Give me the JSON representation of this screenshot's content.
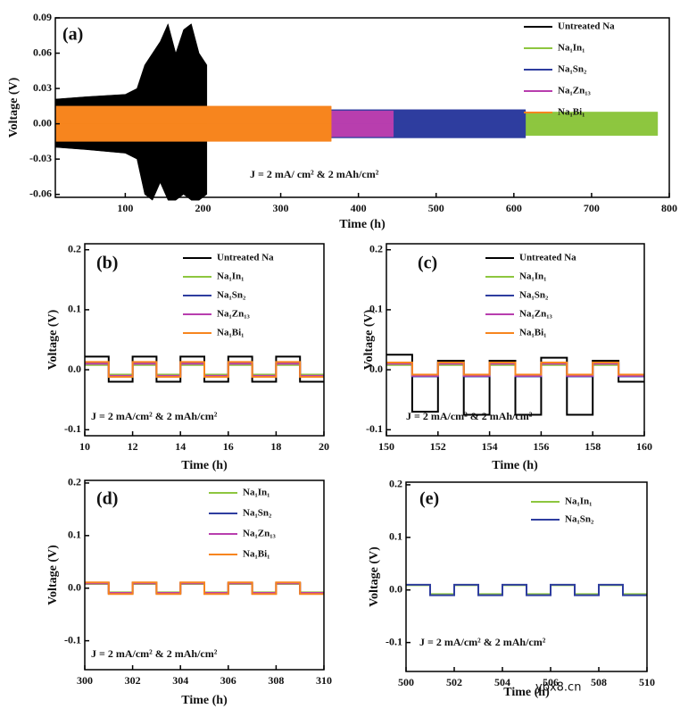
{
  "chart_data": [
    {
      "type": "band",
      "panel_label": "(a)",
      "annotation": "J = 2 mA/ cm² & 2 mAh/cm²",
      "xlabel": "Time (h)",
      "ylabel": "Voltage (V)",
      "xlim": [
        10,
        800
      ],
      "ylim": [
        -0.0625,
        0.09
      ],
      "xticks": [
        100,
        200,
        300,
        400,
        500,
        600,
        700,
        800
      ],
      "yticks": [
        -0.06,
        -0.03,
        {
          "value": 0,
          "label": "0.00"
        },
        0.03,
        0.06,
        0.09
      ],
      "series": [
        {
          "name": "Untreated Na",
          "color": "#000000",
          "x": [
            10,
            50,
            100,
            115,
            125,
            135,
            145,
            155,
            165,
            175,
            185,
            195,
            205
          ],
          "upper": [
            0.021,
            0.023,
            0.025,
            0.03,
            0.05,
            0.06,
            0.07,
            0.085,
            0.06,
            0.08,
            0.085,
            0.06,
            0.05
          ],
          "lower": [
            -0.02,
            -0.022,
            -0.025,
            -0.03,
            -0.06,
            -0.065,
            -0.05,
            -0.065,
            -0.065,
            -0.06,
            -0.065,
            -0.065,
            -0.06
          ]
        },
        {
          "name": "Na₁In₁",
          "color": "#8dc63f",
          "x": [
            10,
            785
          ],
          "upper": [
            0.01,
            0.01
          ],
          "lower": [
            -0.01,
            -0.01
          ]
        },
        {
          "name": "Na₁Sn₂",
          "color": "#2e3d9f",
          "x": [
            10,
            615
          ],
          "upper": [
            0.012,
            0.012
          ],
          "lower": [
            -0.012,
            -0.012
          ]
        },
        {
          "name": "Na₁Zn₁₃",
          "color": "#b83eae",
          "x": [
            10,
            445
          ],
          "upper": [
            0.011,
            0.011
          ],
          "lower": [
            -0.011,
            -0.011
          ]
        },
        {
          "name": "Na₁Bi₁",
          "color": "#f7851e",
          "x": [
            10,
            365
          ],
          "upper": [
            0.015,
            0.015
          ],
          "lower": [
            -0.015,
            -0.015
          ]
        }
      ]
    },
    {
      "type": "line",
      "panel_label": "(b)",
      "annotation": "J = 2 mA/cm² & 2 mAh/cm²",
      "xlabel": "Time (h)",
      "ylabel": "Voltage (V)",
      "xlim": [
        10,
        20
      ],
      "ylim": [
        -0.11,
        0.21
      ],
      "xticks": [
        10,
        12,
        14,
        16,
        18,
        20
      ],
      "yticks": [
        -0.1,
        {
          "value": 0,
          "label": "0.0"
        },
        0.1,
        0.2
      ],
      "x": [
        10,
        11,
        11,
        12,
        12,
        13,
        13,
        14,
        14,
        15,
        15,
        16,
        16,
        17,
        17,
        18,
        18,
        19,
        19,
        20
      ],
      "series": [
        {
          "name": "Untreated Na",
          "color": "#000000",
          "values": [
            0.022,
            0.022,
            -0.02,
            -0.02,
            0.022,
            0.022,
            -0.02,
            -0.02,
            0.022,
            0.022,
            -0.02,
            -0.02,
            0.022,
            0.022,
            -0.02,
            -0.02,
            0.022,
            0.022,
            -0.02,
            -0.02
          ]
        },
        {
          "name": "Na₁In₁",
          "color": "#8dc63f",
          "values": [
            0.008,
            0.008,
            -0.008,
            -0.008,
            0.008,
            0.008,
            -0.008,
            -0.008,
            0.008,
            0.008,
            -0.008,
            -0.008,
            0.008,
            0.008,
            -0.008,
            -0.008,
            0.008,
            0.008,
            -0.008,
            -0.008
          ]
        },
        {
          "name": "Na₁Sn₂",
          "color": "#2e3d9f",
          "values": [
            0.011,
            0.011,
            -0.011,
            -0.011,
            0.011,
            0.011,
            -0.011,
            -0.011,
            0.011,
            0.011,
            -0.011,
            -0.011,
            0.011,
            0.011,
            -0.011,
            -0.011,
            0.011,
            0.011,
            -0.011,
            -0.011
          ]
        },
        {
          "name": "Na₁Zn₁₃",
          "color": "#b83eae",
          "values": [
            0.01,
            0.01,
            -0.01,
            -0.01,
            0.01,
            0.01,
            -0.01,
            -0.01,
            0.01,
            0.01,
            -0.01,
            -0.01,
            0.01,
            0.01,
            -0.01,
            -0.01,
            0.01,
            0.01,
            -0.01,
            -0.01
          ]
        },
        {
          "name": "Na₁Bi₁",
          "color": "#f7851e",
          "values": [
            0.013,
            0.013,
            -0.012,
            -0.012,
            0.013,
            0.013,
            -0.012,
            -0.012,
            0.013,
            0.013,
            -0.012,
            -0.012,
            0.013,
            0.013,
            -0.012,
            -0.012,
            0.013,
            0.013,
            -0.012,
            -0.012
          ]
        }
      ]
    },
    {
      "type": "line",
      "panel_label": "(c)",
      "annotation": "J = 2 mA/cm² & 2 mAh/cm²",
      "xlabel": "Time (h)",
      "ylabel": "Voltage (V)",
      "xlim": [
        150,
        160
      ],
      "ylim": [
        -0.11,
        0.21
      ],
      "xticks": [
        150,
        152,
        154,
        156,
        158,
        160
      ],
      "yticks": [
        -0.1,
        {
          "value": 0,
          "label": "0.0"
        },
        0.1,
        0.2
      ],
      "x": [
        150,
        151,
        151,
        152,
        152,
        153,
        153,
        154,
        154,
        155,
        155,
        156,
        156,
        157,
        157,
        158,
        158,
        159,
        159,
        160
      ],
      "series": [
        {
          "name": "Untreated Na",
          "color": "#000000",
          "values": [
            0.025,
            0.025,
            -0.07,
            -0.07,
            0.015,
            0.015,
            -0.075,
            -0.075,
            0.015,
            0.015,
            -0.075,
            -0.075,
            0.02,
            0.02,
            -0.075,
            -0.075,
            0.015,
            0.015,
            -0.02,
            -0.02
          ]
        },
        {
          "name": "Na₁In₁",
          "color": "#8dc63f",
          "values": [
            0.008,
            0.008,
            -0.008,
            -0.008,
            0.008,
            0.008,
            -0.008,
            -0.008,
            0.008,
            0.008,
            -0.008,
            -0.008,
            0.008,
            0.008,
            -0.008,
            -0.008,
            0.008,
            0.008,
            -0.008,
            -0.008
          ]
        },
        {
          "name": "Na₁Sn₂",
          "color": "#2e3d9f",
          "values": [
            0.011,
            0.011,
            -0.011,
            -0.011,
            0.011,
            0.011,
            -0.011,
            -0.011,
            0.011,
            0.011,
            -0.011,
            -0.011,
            0.011,
            0.011,
            -0.011,
            -0.011,
            0.011,
            0.011,
            -0.011,
            -0.011
          ]
        },
        {
          "name": "Na₁Zn₁₃",
          "color": "#b83eae",
          "values": [
            0.01,
            0.01,
            -0.01,
            -0.01,
            0.01,
            0.01,
            -0.01,
            -0.01,
            0.01,
            0.01,
            -0.01,
            -0.01,
            0.01,
            0.01,
            -0.01,
            -0.01,
            0.01,
            0.01,
            -0.01,
            -0.01
          ]
        },
        {
          "name": "Na₁Bi₁",
          "color": "#f7851e",
          "values": [
            0.012,
            0.012,
            -0.008,
            -0.008,
            0.012,
            0.012,
            -0.008,
            -0.008,
            0.012,
            0.012,
            -0.008,
            -0.008,
            0.012,
            0.012,
            -0.008,
            -0.008,
            0.012,
            0.012,
            -0.008,
            -0.008
          ]
        }
      ]
    },
    {
      "type": "line",
      "panel_label": "(d)",
      "annotation": "J = 2 mA/cm² & 2 mAh/cm²",
      "xlabel": "Time (h)",
      "ylabel": "Voltage (V)",
      "xlim": [
        300,
        310
      ],
      "ylim": [
        -0.155,
        0.205
      ],
      "xticks": [
        300,
        302,
        304,
        306,
        308,
        310
      ],
      "yticks": [
        -0.1,
        {
          "value": 0,
          "label": "0.0"
        },
        0.1,
        0.2
      ],
      "x": [
        300,
        301,
        301,
        302,
        302,
        303,
        303,
        304,
        304,
        305,
        305,
        306,
        306,
        307,
        307,
        308,
        308,
        309,
        309,
        310
      ],
      "series": [
        {
          "name": "Na₁In₁",
          "color": "#8dc63f",
          "values": [
            0.008,
            0.008,
            -0.008,
            -0.008,
            0.008,
            0.008,
            -0.008,
            -0.008,
            0.008,
            0.008,
            -0.008,
            -0.008,
            0.008,
            0.008,
            -0.008,
            -0.008,
            0.008,
            0.008,
            -0.008,
            -0.008
          ]
        },
        {
          "name": "Na₁Sn₂",
          "color": "#2e3d9f",
          "values": [
            0.01,
            0.01,
            -0.01,
            -0.01,
            0.01,
            0.01,
            -0.01,
            -0.01,
            0.01,
            0.01,
            -0.01,
            -0.01,
            0.01,
            0.01,
            -0.01,
            -0.01,
            0.01,
            0.01,
            -0.01,
            -0.01
          ]
        },
        {
          "name": "Na₁Zn₁₃",
          "color": "#b83eae",
          "values": [
            0.009,
            0.009,
            -0.009,
            -0.009,
            0.009,
            0.009,
            -0.009,
            -0.009,
            0.009,
            0.009,
            -0.009,
            -0.009,
            0.009,
            0.009,
            -0.009,
            -0.009,
            0.009,
            0.009,
            -0.009,
            -0.009
          ]
        },
        {
          "name": "Na₁Bi₁",
          "color": "#f7851e",
          "values": [
            0.011,
            0.011,
            -0.011,
            -0.011,
            0.011,
            0.011,
            -0.011,
            -0.011,
            0.011,
            0.011,
            -0.011,
            -0.011,
            0.011,
            0.011,
            -0.011,
            -0.011,
            0.011,
            0.011,
            -0.011,
            -0.011
          ]
        }
      ]
    },
    {
      "type": "line",
      "panel_label": "(e)",
      "annotation": "J = 2 mA/cm² & 2 mAh/cm²",
      "xlabel": "Time (h)",
      "ylabel": "Voltage (V)",
      "xlim": [
        500,
        510
      ],
      "ylim": [
        -0.155,
        0.205
      ],
      "xticks": [
        500,
        502,
        504,
        506,
        508,
        510
      ],
      "yticks": [
        -0.1,
        {
          "value": 0,
          "label": "0.0"
        },
        0.1,
        0.2
      ],
      "x": [
        500,
        501,
        501,
        502,
        502,
        503,
        503,
        504,
        504,
        505,
        505,
        506,
        506,
        507,
        507,
        508,
        508,
        509,
        509,
        510
      ],
      "series": [
        {
          "name": "Na₁In₁",
          "color": "#8dc63f",
          "values": [
            0.009,
            0.009,
            -0.008,
            -0.008,
            0.009,
            0.009,
            -0.008,
            -0.008,
            0.009,
            0.009,
            -0.008,
            -0.008,
            0.009,
            0.009,
            -0.008,
            -0.008,
            0.009,
            0.009,
            -0.008,
            -0.008
          ]
        },
        {
          "name": "Na₁Sn₂",
          "color": "#2e3d9f",
          "values": [
            0.01,
            0.01,
            -0.01,
            -0.01,
            0.01,
            0.01,
            -0.01,
            -0.01,
            0.01,
            0.01,
            -0.01,
            -0.01,
            0.01,
            0.01,
            -0.01,
            -0.01,
            0.01,
            0.01,
            -0.01,
            -0.01
          ]
        }
      ]
    }
  ],
  "watermark": "ybx8.cn"
}
